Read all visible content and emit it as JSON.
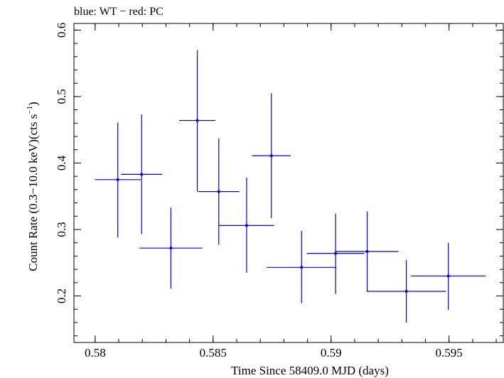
{
  "chart_data": {
    "type": "scatter",
    "title": "blue: WT − red: PC",
    "xlabel": "Time Since 58409.0 MJD (days)",
    "ylabel": "Count Rate (0.3−10.0 keV)(cts s",
    "ylabel_sup": "−1",
    "ylabel_end": ")",
    "xlim": [
      0.5791,
      0.5973
    ],
    "ylim": [
      0.13,
      0.61
    ],
    "x_ticks": [
      {
        "value": 0.58,
        "label": "0.58"
      },
      {
        "value": 0.585,
        "label": "0.585"
      },
      {
        "value": 0.59,
        "label": "0.59"
      },
      {
        "value": 0.595,
        "label": "0.595"
      }
    ],
    "y_ticks": [
      {
        "value": 0.2,
        "label": "0.2"
      },
      {
        "value": 0.3,
        "label": "0.3"
      },
      {
        "value": 0.4,
        "label": "0.4"
      },
      {
        "value": 0.5,
        "label": "0.5"
      },
      {
        "value": 0.6,
        "label": "0.6"
      }
    ],
    "x_minor_step": 0.001,
    "y_minor_step": 0.02,
    "series": [
      {
        "color": "#0000ee",
        "points": [
          {
            "x": 0.58096,
            "xerr": 0.00097,
            "y": 0.375,
            "yerr_low": 0.087,
            "yerr_high": 0.086
          },
          {
            "x": 0.58197,
            "xerr": 0.00087,
            "y": 0.383,
            "yerr_low": 0.09,
            "yerr_high": 0.09
          },
          {
            "x": 0.58321,
            "xerr": 0.00133,
            "y": 0.272,
            "yerr_low": 0.061,
            "yerr_high": 0.061
          },
          {
            "x": 0.58433,
            "xerr": 0.00077,
            "y": 0.464,
            "yerr_low": 0.107,
            "yerr_high": 0.106
          },
          {
            "x": 0.58524,
            "xerr": 0.00087,
            "y": 0.357,
            "yerr_low": 0.08,
            "yerr_high": 0.08
          },
          {
            "x": 0.58642,
            "xerr": 0.00117,
            "y": 0.306,
            "yerr_low": 0.071,
            "yerr_high": 0.072
          },
          {
            "x": 0.58747,
            "xerr": 0.00082,
            "y": 0.411,
            "yerr_low": 0.094,
            "yerr_high": 0.094
          },
          {
            "x": 0.58875,
            "xerr": 0.00148,
            "y": 0.243,
            "yerr_low": 0.054,
            "yerr_high": 0.055
          },
          {
            "x": 0.59019,
            "xerr": 0.00122,
            "y": 0.264,
            "yerr_low": 0.061,
            "yerr_high": 0.06
          },
          {
            "x": 0.59153,
            "xerr": 0.00133,
            "y": 0.267,
            "yerr_low": 0.06,
            "yerr_high": 0.06
          },
          {
            "x": 0.59319,
            "xerr": 0.00168,
            "y": 0.207,
            "yerr_low": 0.047,
            "yerr_high": 0.047
          },
          {
            "x": 0.59497,
            "xerr": 0.00158,
            "y": 0.23,
            "yerr_low": 0.051,
            "yerr_high": 0.05
          }
        ]
      }
    ]
  }
}
